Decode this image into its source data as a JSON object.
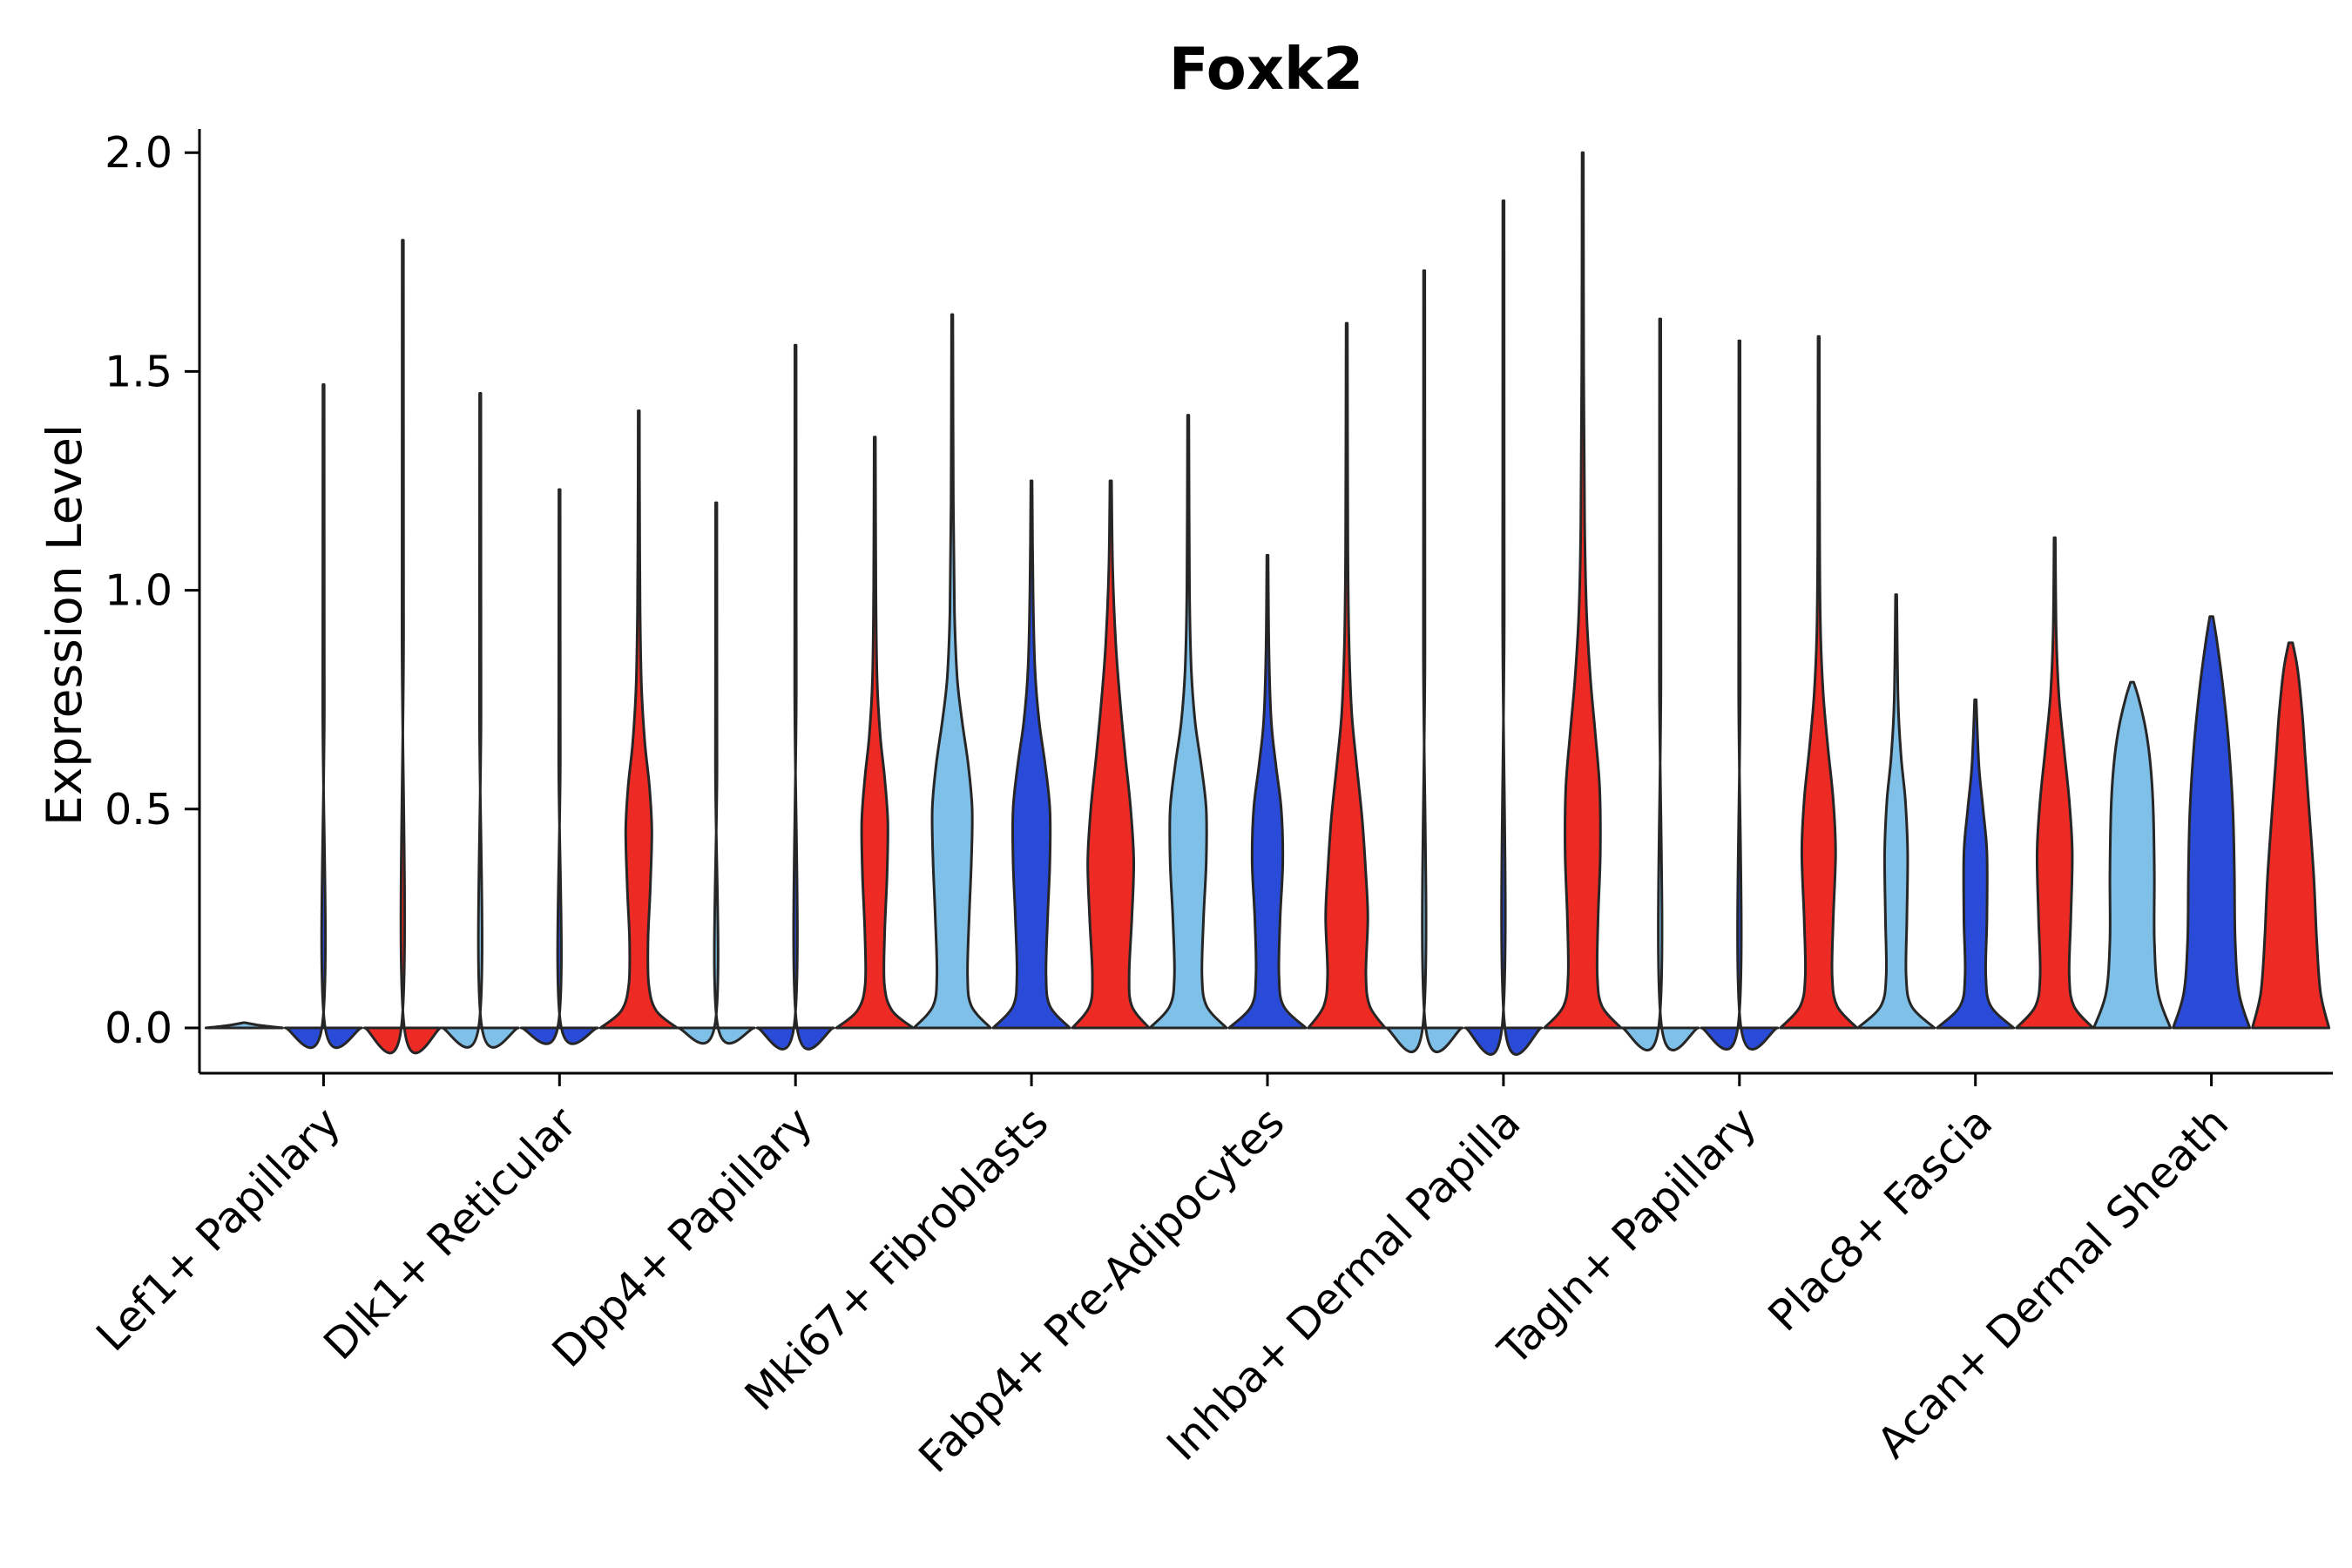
{
  "chart_data": {
    "type": "violin",
    "title": "Foxk2",
    "ylabel": "Expression Level",
    "xlabel": "",
    "ylim": [
      0,
      2.0
    ],
    "yticks": [
      0.0,
      0.5,
      1.0,
      1.5,
      2.0
    ],
    "ytick_labels": [
      "0.0",
      "0.5",
      "1.0",
      "1.5",
      "2.0"
    ],
    "x_tick_rotation": 45,
    "grid": false,
    "legend": "none",
    "colors": {
      "lightblue": "#7FC0E8",
      "darkblue": "#2A4BD7",
      "red": "#ED2B24"
    },
    "stroke_color": "#262626",
    "categories": [
      "Lef1+ Papillary",
      "Dlk1+ Reticular",
      "Dpp4+ Papillary",
      "Mki67+ Fibroblasts",
      "Fabp4+ Pre-Adipocytes",
      "Inhba+ Dermal Papilla",
      "Tagln+ Papillary",
      "Plac8+ Fascia",
      "Acan+ Dermal Sheath"
    ],
    "groups": [
      {
        "category": "Lef1+ Papillary",
        "violins": [
          {
            "color": "lightblue",
            "max": 0.01,
            "profile": [
              [
                0,
                1.0
              ],
              [
                0.006,
                0.4
              ],
              [
                0.012,
                0.02
              ]
            ]
          },
          {
            "color": "darkblue",
            "max": 1.47,
            "kind": "spike"
          },
          {
            "color": "red",
            "max": 1.8,
            "kind": "spike"
          }
        ]
      },
      {
        "category": "Dlk1+ Reticular",
        "violins": [
          {
            "color": "lightblue",
            "max": 1.45,
            "kind": "spike"
          },
          {
            "color": "darkblue",
            "max": 1.23,
            "kind": "spike"
          },
          {
            "color": "red",
            "max": 1.41,
            "profile": [
              [
                0,
                1.0
              ],
              [
                0.04,
                0.45
              ],
              [
                0.1,
                0.26
              ],
              [
                0.2,
                0.24
              ],
              [
                0.32,
                0.3
              ],
              [
                0.45,
                0.34
              ],
              [
                0.55,
                0.28
              ],
              [
                0.65,
                0.16
              ],
              [
                0.78,
                0.07
              ],
              [
                0.95,
                0.035
              ],
              [
                1.2,
                0.02
              ],
              [
                1.41,
                0.015
              ]
            ]
          }
        ]
      },
      {
        "category": "Dpp4+ Papillary",
        "violins": [
          {
            "color": "lightblue",
            "max": 1.2,
            "kind": "spike"
          },
          {
            "color": "darkblue",
            "max": 1.56,
            "kind": "spike"
          },
          {
            "color": "red",
            "max": 1.35,
            "profile": [
              [
                0,
                1.0
              ],
              [
                0.04,
                0.45
              ],
              [
                0.1,
                0.25
              ],
              [
                0.22,
                0.26
              ],
              [
                0.35,
                0.32
              ],
              [
                0.47,
                0.34
              ],
              [
                0.57,
                0.26
              ],
              [
                0.67,
                0.14
              ],
              [
                0.8,
                0.06
              ],
              [
                1.0,
                0.03
              ],
              [
                1.35,
                0.015
              ]
            ]
          }
        ]
      },
      {
        "category": "Mki67+ Fibroblasts",
        "violins": [
          {
            "color": "lightblue",
            "max": 1.63,
            "profile": [
              [
                0,
                1.0
              ],
              [
                0.05,
                0.5
              ],
              [
                0.12,
                0.4
              ],
              [
                0.25,
                0.44
              ],
              [
                0.38,
                0.5
              ],
              [
                0.5,
                0.52
              ],
              [
                0.6,
                0.42
              ],
              [
                0.7,
                0.26
              ],
              [
                0.8,
                0.13
              ],
              [
                0.95,
                0.06
              ],
              [
                1.2,
                0.03
              ],
              [
                1.63,
                0.015
              ]
            ]
          },
          {
            "color": "darkblue",
            "max": 1.25,
            "profile": [
              [
                0,
                1.0
              ],
              [
                0.05,
                0.48
              ],
              [
                0.12,
                0.38
              ],
              [
                0.25,
                0.42
              ],
              [
                0.38,
                0.48
              ],
              [
                0.5,
                0.48
              ],
              [
                0.6,
                0.36
              ],
              [
                0.7,
                0.2
              ],
              [
                0.82,
                0.09
              ],
              [
                1.0,
                0.04
              ],
              [
                1.25,
                0.015
              ]
            ]
          },
          {
            "color": "red",
            "max": 1.25,
            "profile": [
              [
                0,
                1.0
              ],
              [
                0.05,
                0.55
              ],
              [
                0.12,
                0.48
              ],
              [
                0.25,
                0.55
              ],
              [
                0.38,
                0.6
              ],
              [
                0.5,
                0.52
              ],
              [
                0.62,
                0.38
              ],
              [
                0.75,
                0.24
              ],
              [
                0.88,
                0.13
              ],
              [
                1.05,
                0.05
              ],
              [
                1.25,
                0.02
              ]
            ]
          }
        ]
      },
      {
        "category": "Fabp4+ Pre-Adipocytes",
        "violins": [
          {
            "color": "lightblue",
            "max": 1.4,
            "profile": [
              [
                0,
                1.0
              ],
              [
                0.05,
                0.48
              ],
              [
                0.12,
                0.36
              ],
              [
                0.25,
                0.4
              ],
              [
                0.38,
                0.47
              ],
              [
                0.5,
                0.47
              ],
              [
                0.6,
                0.34
              ],
              [
                0.7,
                0.18
              ],
              [
                0.82,
                0.08
              ],
              [
                1.0,
                0.035
              ],
              [
                1.4,
                0.015
              ]
            ]
          },
          {
            "color": "darkblue",
            "max": 1.08,
            "profile": [
              [
                0,
                1.0
              ],
              [
                0.05,
                0.42
              ],
              [
                0.12,
                0.3
              ],
              [
                0.25,
                0.33
              ],
              [
                0.38,
                0.4
              ],
              [
                0.5,
                0.36
              ],
              [
                0.6,
                0.22
              ],
              [
                0.7,
                0.1
              ],
              [
                0.85,
                0.04
              ],
              [
                1.08,
                0.015
              ]
            ]
          },
          {
            "color": "red",
            "max": 1.61,
            "profile": [
              [
                0,
                1.0
              ],
              [
                0.05,
                0.6
              ],
              [
                0.12,
                0.5
              ],
              [
                0.25,
                0.55
              ],
              [
                0.35,
                0.5
              ],
              [
                0.48,
                0.4
              ],
              [
                0.6,
                0.26
              ],
              [
                0.72,
                0.13
              ],
              [
                0.88,
                0.06
              ],
              [
                1.1,
                0.03
              ],
              [
                1.61,
                0.015
              ]
            ]
          }
        ]
      },
      {
        "category": "Inhba+ Dermal Papilla",
        "violins": [
          {
            "color": "lightblue",
            "max": 1.73,
            "kind": "spike"
          },
          {
            "color": "darkblue",
            "max": 1.89,
            "kind": "spike"
          },
          {
            "color": "red",
            "max": 2.0,
            "profile": [
              [
                0,
                1.0
              ],
              [
                0.05,
                0.5
              ],
              [
                0.12,
                0.38
              ],
              [
                0.25,
                0.4
              ],
              [
                0.4,
                0.46
              ],
              [
                0.55,
                0.44
              ],
              [
                0.68,
                0.32
              ],
              [
                0.8,
                0.2
              ],
              [
                0.95,
                0.1
              ],
              [
                1.15,
                0.05
              ],
              [
                1.5,
                0.025
              ],
              [
                2.0,
                0.015
              ]
            ]
          }
        ]
      },
      {
        "category": "Tagln+ Papillary",
        "violins": [
          {
            "color": "lightblue",
            "max": 1.62,
            "kind": "spike"
          },
          {
            "color": "darkblue",
            "max": 1.57,
            "kind": "spike"
          },
          {
            "color": "red",
            "max": 1.58,
            "profile": [
              [
                0,
                1.0
              ],
              [
                0.05,
                0.48
              ],
              [
                0.12,
                0.35
              ],
              [
                0.25,
                0.38
              ],
              [
                0.4,
                0.44
              ],
              [
                0.52,
                0.38
              ],
              [
                0.64,
                0.24
              ],
              [
                0.76,
                0.12
              ],
              [
                0.9,
                0.05
              ],
              [
                1.1,
                0.025
              ],
              [
                1.58,
                0.015
              ]
            ]
          }
        ]
      },
      {
        "category": "Plac8+ Fascia",
        "violins": [
          {
            "color": "lightblue",
            "max": 0.99,
            "profile": [
              [
                0,
                1.0
              ],
              [
                0.05,
                0.4
              ],
              [
                0.12,
                0.26
              ],
              [
                0.25,
                0.28
              ],
              [
                0.4,
                0.3
              ],
              [
                0.52,
                0.24
              ],
              [
                0.62,
                0.13
              ],
              [
                0.75,
                0.05
              ],
              [
                0.99,
                0.015
              ]
            ]
          },
          {
            "color": "darkblue",
            "max": 0.75,
            "profile": [
              [
                0,
                1.0
              ],
              [
                0.05,
                0.4
              ],
              [
                0.12,
                0.27
              ],
              [
                0.25,
                0.3
              ],
              [
                0.4,
                0.3
              ],
              [
                0.5,
                0.2
              ],
              [
                0.6,
                0.09
              ],
              [
                0.75,
                0.02
              ]
            ]
          },
          {
            "color": "red",
            "max": 1.12,
            "profile": [
              [
                0,
                1.0
              ],
              [
                0.05,
                0.5
              ],
              [
                0.12,
                0.38
              ],
              [
                0.25,
                0.42
              ],
              [
                0.4,
                0.46
              ],
              [
                0.52,
                0.38
              ],
              [
                0.64,
                0.24
              ],
              [
                0.76,
                0.11
              ],
              [
                0.9,
                0.04
              ],
              [
                1.12,
                0.015
              ]
            ]
          }
        ]
      },
      {
        "category": "Acan+ Dermal Sheath",
        "violins": [
          {
            "color": "lightblue",
            "max": 0.79,
            "profile": [
              [
                0,
                1.0
              ],
              [
                0.08,
                0.68
              ],
              [
                0.2,
                0.58
              ],
              [
                0.35,
                0.58
              ],
              [
                0.5,
                0.55
              ],
              [
                0.6,
                0.48
              ],
              [
                0.68,
                0.36
              ],
              [
                0.75,
                0.18
              ],
              [
                0.79,
                0.04
              ]
            ]
          },
          {
            "color": "darkblue",
            "max": 0.94,
            "profile": [
              [
                0,
                1.0
              ],
              [
                0.08,
                0.72
              ],
              [
                0.2,
                0.62
              ],
              [
                0.35,
                0.6
              ],
              [
                0.5,
                0.56
              ],
              [
                0.65,
                0.45
              ],
              [
                0.78,
                0.3
              ],
              [
                0.88,
                0.15
              ],
              [
                0.94,
                0.04
              ]
            ]
          },
          {
            "color": "red",
            "max": 0.88,
            "profile": [
              [
                0,
                1.0
              ],
              [
                0.08,
                0.78
              ],
              [
                0.2,
                0.68
              ],
              [
                0.35,
                0.6
              ],
              [
                0.5,
                0.48
              ],
              [
                0.62,
                0.38
              ],
              [
                0.72,
                0.3
              ],
              [
                0.82,
                0.18
              ],
              [
                0.88,
                0.05
              ]
            ]
          }
        ]
      }
    ]
  }
}
